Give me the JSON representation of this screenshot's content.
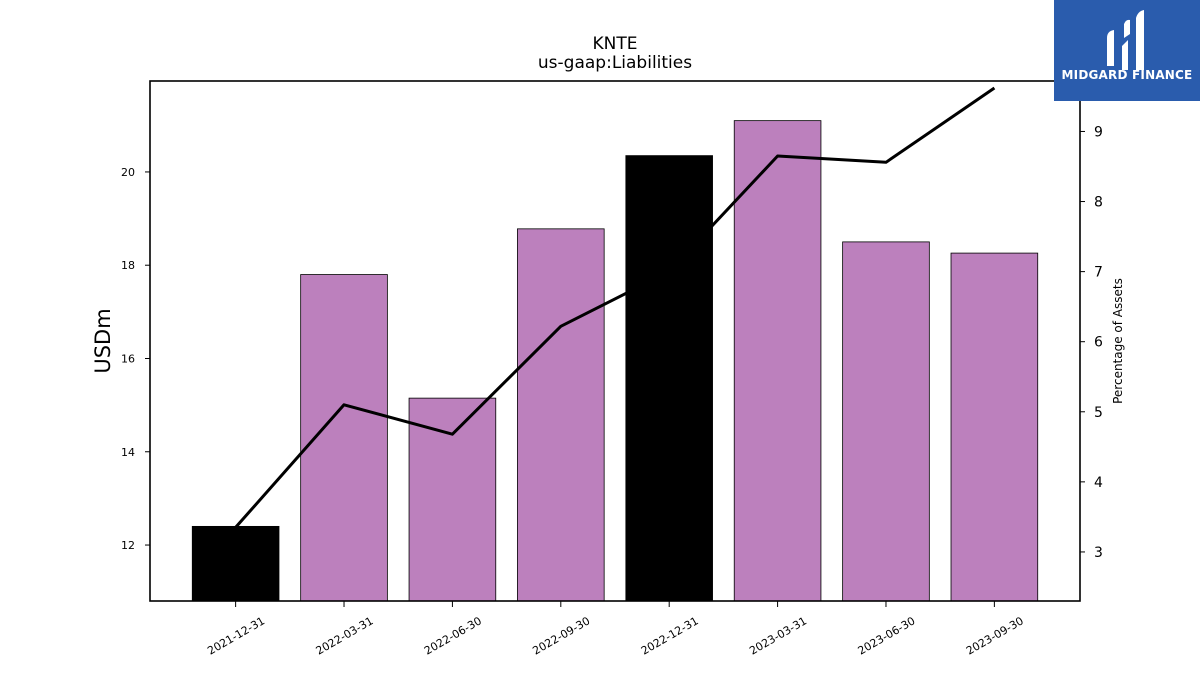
{
  "chart_data": {
    "type": "bar",
    "title": "KNTE",
    "subtitle": "us-gaap:Liabilities",
    "ylabel": "USDm",
    "y2label": "Percentage of Assets",
    "categories": [
      "2021-12-31",
      "2022-03-31",
      "2022-06-30",
      "2022-09-30",
      "2022-12-31",
      "2023-03-31",
      "2023-06-30",
      "2023-09-30"
    ],
    "series": [
      {
        "type": "bar",
        "axis": "left",
        "values": [
          12.4,
          17.8,
          15.15,
          18.78,
          20.35,
          21.1,
          18.5,
          18.26
        ],
        "highlight": [
          true,
          false,
          false,
          false,
          true,
          false,
          false,
          false
        ]
      },
      {
        "type": "line",
        "axis": "right",
        "values": [
          3.35,
          5.1,
          4.68,
          6.22,
          7.0,
          8.65,
          8.56,
          9.62
        ]
      }
    ],
    "ylim": [
      10.8,
      21.95
    ],
    "yticks": [
      12,
      14,
      16,
      18,
      20
    ],
    "y2lim": [
      2.3,
      9.72
    ],
    "y2ticks": [
      3,
      4,
      5,
      6,
      7,
      8,
      9
    ],
    "grid": false,
    "colors": {
      "bar": "#bc80bd",
      "bar_highlight": "#000000",
      "line": "#000000",
      "axes": "#000000"
    }
  },
  "brand": {
    "name": "MIDGARD FINANCE",
    "background": "#2a5cad"
  }
}
